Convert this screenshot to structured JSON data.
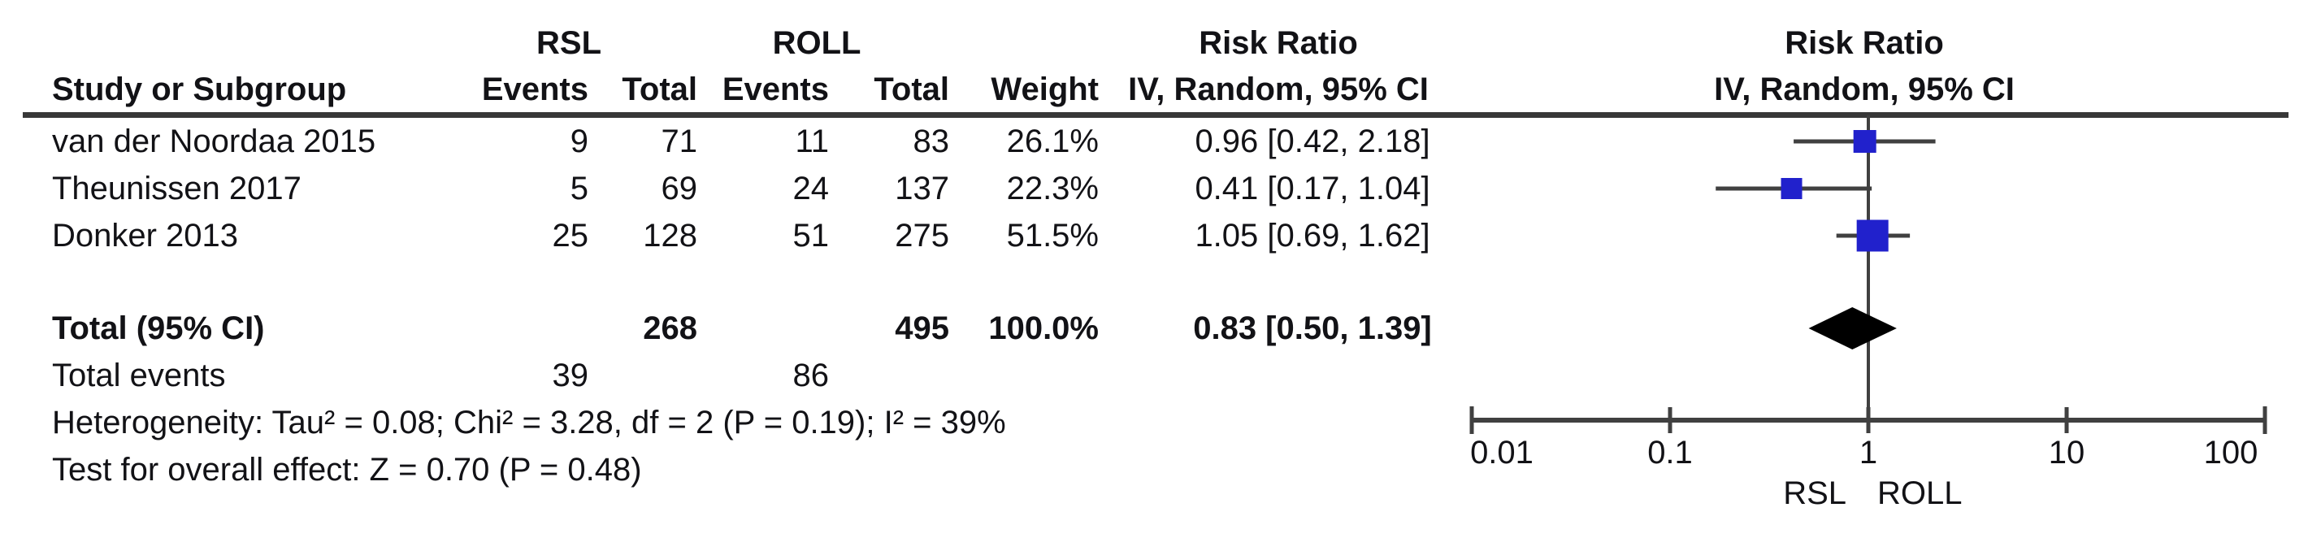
{
  "table": {
    "col_headers": {
      "study": "Study or Subgroup",
      "group1": "RSL",
      "group2": "ROLL",
      "events1": "Events",
      "total1": "Total",
      "events2": "Events",
      "total2": "Total",
      "weight": "Weight",
      "effect_line1": "Risk Ratio",
      "effect_line2": "IV, Random, 95% CI"
    },
    "studies": [
      {
        "name": "van der Noordaa 2015",
        "events1": "9",
        "total1": "71",
        "events2": "11",
        "total2": "83",
        "weight": "26.1%",
        "ci": "0.96 [0.42, 2.18]"
      },
      {
        "name": "Theunissen 2017",
        "events1": "5",
        "total1": "69",
        "events2": "24",
        "total2": "137",
        "weight": "22.3%",
        "ci": "0.41 [0.17, 1.04]"
      },
      {
        "name": "Donker 2013",
        "events1": "25",
        "total1": "128",
        "events2": "51",
        "total2": "275",
        "weight": "51.5%",
        "ci": "1.05 [0.69, 1.62]"
      }
    ],
    "total_row": {
      "label": "Total (95% CI)",
      "total1": "268",
      "total2": "495",
      "weight": "100.0%",
      "ci": "0.83 [0.50, 1.39]"
    },
    "total_events_row": {
      "label": "Total events",
      "events1": "39",
      "events2": "86"
    },
    "heterogeneity": "Heterogeneity: Tau² = 0.08; Chi² = 3.28, df = 2 (P = 0.19); I² = 39%",
    "overall_effect": "Test for overall effect: Z = 0.70 (P = 0.48)"
  },
  "plot": {
    "header_line1": "Risk Ratio",
    "header_line2": "IV, Random, 95% CI",
    "axis_label_left": "RSL",
    "axis_label_right": "ROLL"
  },
  "chart_data": {
    "type": "forest",
    "x_scale": "log",
    "x_range": [
      0.01,
      100
    ],
    "axis_ticks": [
      "0.01",
      "0.1",
      "1",
      "10",
      "100"
    ],
    "effect_measure": "Risk Ratio, IV, Random, 95% CI",
    "studies": [
      {
        "name": "van der Noordaa 2015",
        "rr": 0.96,
        "ci_low": 0.42,
        "ci_high": 2.18,
        "weight_pct": 26.1
      },
      {
        "name": "Theunissen 2017",
        "rr": 0.41,
        "ci_low": 0.17,
        "ci_high": 1.04,
        "weight_pct": 22.3
      },
      {
        "name": "Donker 2013",
        "rr": 1.05,
        "ci_low": 0.69,
        "ci_high": 1.62,
        "weight_pct": 51.5
      }
    ],
    "total": {
      "rr": 0.83,
      "ci_low": 0.5,
      "ci_high": 1.39
    },
    "marker_color": "#2121cc",
    "diamond_color": "#000000",
    "line_color": "#404040"
  }
}
